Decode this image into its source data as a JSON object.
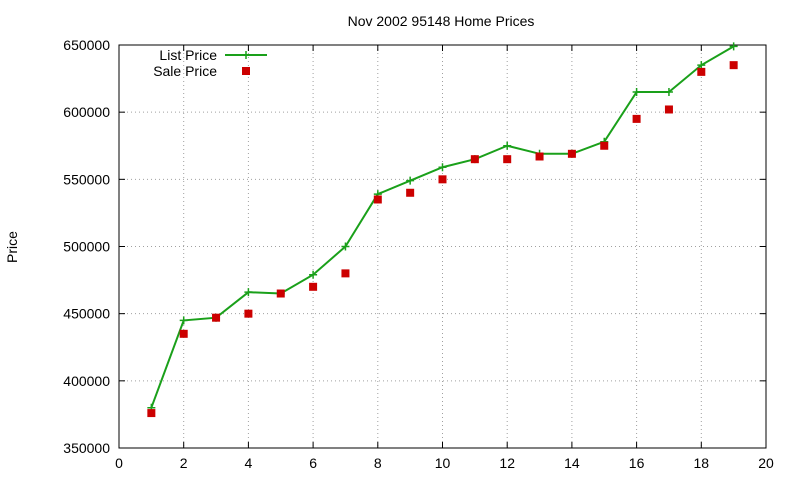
{
  "chart_data": {
    "type": "line",
    "title": "Nov 2002 95148 Home Prices",
    "xlabel": "",
    "ylabel": "Price",
    "xlim": [
      0,
      20
    ],
    "ylim": [
      350000,
      650000
    ],
    "x_ticks": [
      0,
      2,
      4,
      6,
      8,
      10,
      12,
      14,
      16,
      18,
      20
    ],
    "y_ticks": [
      350000,
      400000,
      450000,
      500000,
      550000,
      600000,
      650000
    ],
    "grid": true,
    "legend_position": "top-left",
    "series": [
      {
        "name": "List Price",
        "style": "line+cross",
        "color": "#1aa01a",
        "x": [
          1,
          2,
          3,
          4,
          5,
          6,
          7,
          8,
          9,
          10,
          11,
          12,
          13,
          14,
          15,
          16,
          17,
          18,
          19
        ],
        "values": [
          380000,
          445000,
          447000,
          466000,
          465000,
          479000,
          500000,
          539000,
          549000,
          559000,
          565000,
          575000,
          569000,
          569000,
          578000,
          615000,
          615000,
          635000,
          649000
        ]
      },
      {
        "name": "Sale Price",
        "style": "square",
        "color": "#cc0000",
        "x": [
          1,
          2,
          3,
          4,
          5,
          6,
          7,
          8,
          9,
          10,
          11,
          12,
          13,
          14,
          15,
          16,
          17,
          18,
          19
        ],
        "values": [
          376000,
          435000,
          447000,
          450000,
          465000,
          470000,
          480000,
          535000,
          540000,
          550000,
          565000,
          565000,
          567000,
          569000,
          575000,
          595000,
          602000,
          630000,
          635000
        ]
      }
    ]
  }
}
